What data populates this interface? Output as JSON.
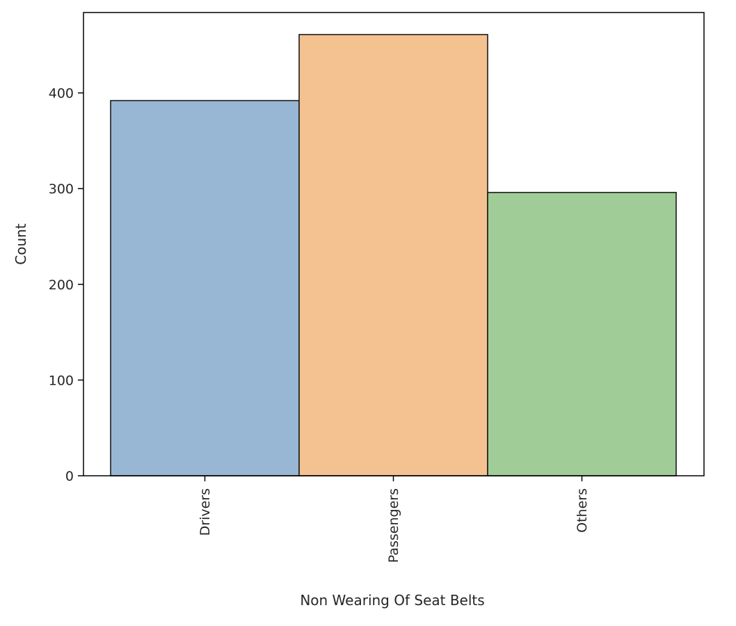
{
  "chart_data": {
    "type": "bar",
    "title": "",
    "xlabel": "Non Wearing Of Seat Belts",
    "ylabel": "Count",
    "categories": [
      "Drivers",
      "Passengers",
      "Others"
    ],
    "values": [
      392,
      461,
      296
    ],
    "colors": [
      "#98b7d5",
      "#f4c190",
      "#a0cc98"
    ],
    "edge_color": "#1a1a1a",
    "ylim": [
      0,
      484
    ],
    "yticks": [
      0,
      100,
      200,
      300,
      400
    ],
    "ytick_labels": [
      "0",
      "100",
      "200",
      "300",
      "400"
    ],
    "grid": false,
    "legend": "none"
  }
}
